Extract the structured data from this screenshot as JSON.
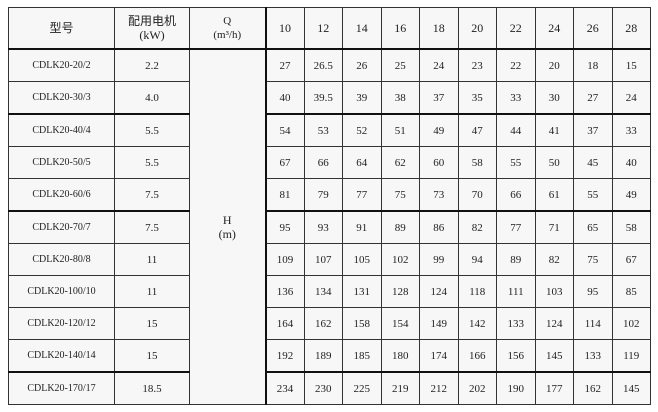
{
  "header": {
    "model": "型号",
    "motor_line1": "配用电机",
    "motor_line2": "(kW)",
    "q_label": "Q",
    "q_unit": "(m³/h)",
    "flows": [
      "10",
      "12",
      "14",
      "16",
      "18",
      "20",
      "22",
      "24",
      "26",
      "28"
    ]
  },
  "h_label": "H",
  "h_unit": "(m)",
  "rows": [
    {
      "model": "CDLK20-20/2",
      "power": "2.2",
      "heads": [
        "27",
        "26.5",
        "26",
        "25",
        "24",
        "23",
        "22",
        "20",
        "18",
        "15"
      ]
    },
    {
      "model": "CDLK20-30/3",
      "power": "4.0",
      "heads": [
        "40",
        "39.5",
        "39",
        "38",
        "37",
        "35",
        "33",
        "30",
        "27",
        "24"
      ]
    },
    {
      "model": "CDLK20-40/4",
      "power": "5.5",
      "heads": [
        "54",
        "53",
        "52",
        "51",
        "49",
        "47",
        "44",
        "41",
        "37",
        "33"
      ]
    },
    {
      "model": "CDLK20-50/5",
      "power": "5.5",
      "heads": [
        "67",
        "66",
        "64",
        "62",
        "60",
        "58",
        "55",
        "50",
        "45",
        "40"
      ]
    },
    {
      "model": "CDLK20-60/6",
      "power": "7.5",
      "heads": [
        "81",
        "79",
        "77",
        "75",
        "73",
        "70",
        "66",
        "61",
        "55",
        "49"
      ]
    },
    {
      "model": "CDLK20-70/7",
      "power": "7.5",
      "heads": [
        "95",
        "93",
        "91",
        "89",
        "86",
        "82",
        "77",
        "71",
        "65",
        "58"
      ]
    },
    {
      "model": "CDLK20-80/8",
      "power": "11",
      "heads": [
        "109",
        "107",
        "105",
        "102",
        "99",
        "94",
        "89",
        "82",
        "75",
        "67"
      ]
    },
    {
      "model": "CDLK20-100/10",
      "power": "11",
      "heads": [
        "136",
        "134",
        "131",
        "128",
        "124",
        "118",
        "111",
        "103",
        "95",
        "85"
      ]
    },
    {
      "model": "CDLK20-120/12",
      "power": "15",
      "heads": [
        "164",
        "162",
        "158",
        "154",
        "149",
        "142",
        "133",
        "124",
        "114",
        "102"
      ]
    },
    {
      "model": "CDLK20-140/14",
      "power": "15",
      "heads": [
        "192",
        "189",
        "185",
        "180",
        "174",
        "166",
        "156",
        "145",
        "133",
        "119"
      ]
    },
    {
      "model": "CDLK20-170/17",
      "power": "18.5",
      "heads": [
        "234",
        "230",
        "225",
        "219",
        "212",
        "202",
        "190",
        "177",
        "162",
        "145"
      ]
    }
  ]
}
